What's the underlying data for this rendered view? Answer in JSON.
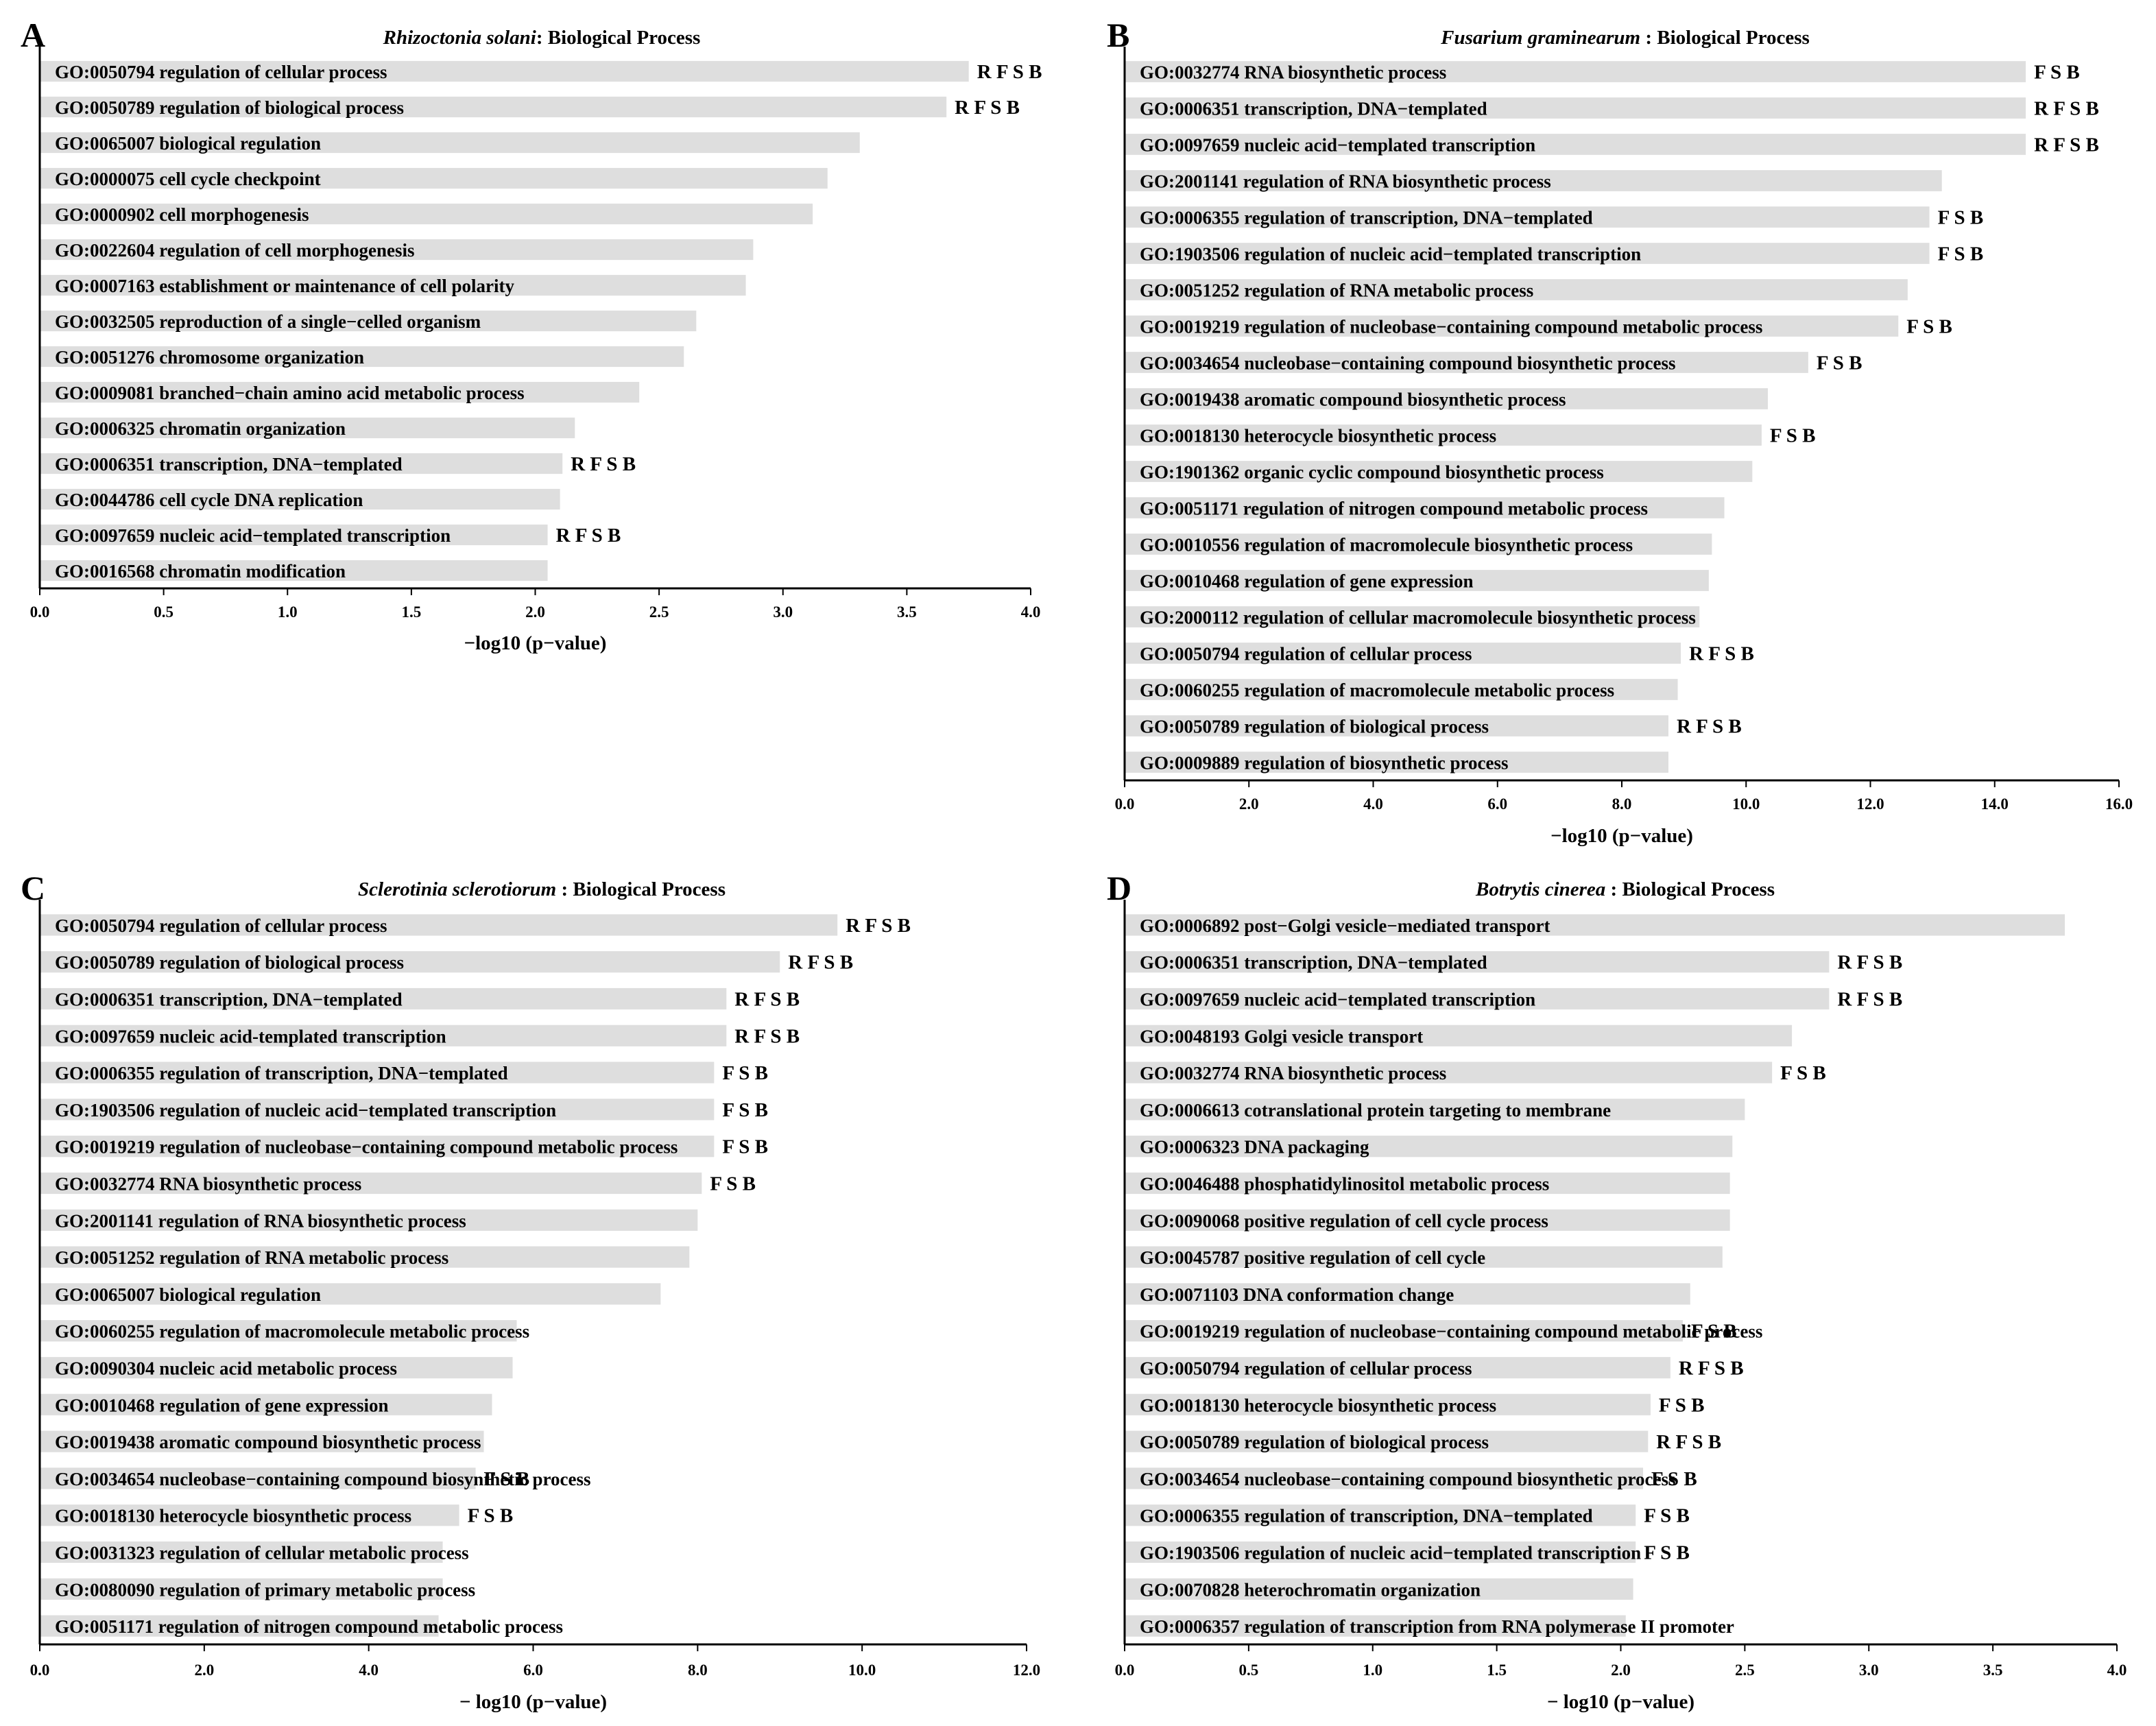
{
  "colors": {
    "bar": "#dedede",
    "axis": "#000000",
    "text": "#000000",
    "background": "#ffffff"
  },
  "chart_data": [
    {
      "panel": "A",
      "type": "bar",
      "orientation": "horizontal",
      "title_species": "Rhizoctonia solani",
      "title_suffix": ": Biological Process",
      "xlabel": "−log10 (p−value)",
      "xlim": [
        0,
        4
      ],
      "xticks": [
        "0.0",
        "0.5",
        "1.0",
        "1.5",
        "2.0",
        "2.5",
        "3.0",
        "3.5",
        "4.0"
      ],
      "categories": [
        "GO:0050794 regulation of cellular process",
        "GO:0050789 regulation of biological process",
        "GO:0065007 biological regulation",
        "GO:0000075 cell cycle checkpoint",
        "GO:0000902 cell morphogenesis",
        "GO:0022604 regulation of cell morphogenesis",
        "GO:0007163 establishment or maintenance of cell polarity",
        "GO:0032505 reproduction of a single−celled organism",
        "GO:0051276 chromosome organization",
        "GO:0009081 branched−chain amino acid metabolic process",
        "GO:0006325 chromatin organization",
        "GO:0006351 transcription, DNA−templated",
        "GO:0044786 cell cycle DNA replication",
        "GO:0097659 nucleic acid−templated transcription",
        "GO:0016568 chromatin modification"
      ],
      "values": [
        3.75,
        3.66,
        3.31,
        3.18,
        3.12,
        2.88,
        2.85,
        2.65,
        2.6,
        2.42,
        2.16,
        2.11,
        2.1,
        2.05,
        2.05
      ],
      "annotations": [
        "R F S B",
        "R F S B",
        "",
        "",
        "",
        "",
        "",
        "",
        "",
        "",
        "",
        "R F S B",
        "",
        "R F S B",
        ""
      ]
    },
    {
      "panel": "B",
      "type": "bar",
      "orientation": "horizontal",
      "title_species": "Fusarium graminearum",
      "title_suffix": " : Biological Process",
      "xlabel": "−log10 (p−value)",
      "xlim": [
        0,
        16
      ],
      "xticks": [
        "0.0",
        "2.0",
        "4.0",
        "6.0",
        "8.0",
        "10.0",
        "12.0",
        "14.0",
        "16.0"
      ],
      "categories": [
        "GO:0032774 RNA biosynthetic process",
        "GO:0006351 transcription, DNA−templated",
        "GO:0097659 nucleic acid−templated transcription",
        "GO:2001141 regulation of RNA biosynthetic process",
        "GO:0006355 regulation of transcription, DNA−templated",
        "GO:1903506 regulation of nucleic acid−templated transcription",
        "GO:0051252 regulation of RNA metabolic process",
        "GO:0019219 regulation of nucleobase−containing compound metabolic process",
        "GO:0034654 nucleobase−containing compound biosynthetic process",
        "GO:0019438 aromatic compound biosynthetic process",
        "GO:0018130 heterocycle biosynthetic process",
        "GO:1901362 organic cyclic compound biosynthetic process",
        "GO:0051171 regulation of nitrogen compound metabolic process",
        "GO:0010556 regulation of macromolecule biosynthetic process",
        "GO:0010468 regulation of gene expression",
        "GO:2000112 regulation of cellular macromolecule biosynthetic process",
        "GO:0050794 regulation of cellular process",
        "GO:0060255 regulation of macromolecule metabolic process",
        "GO:0050789 regulation of biological process",
        "GO:0009889 regulation of biosynthetic process"
      ],
      "values": [
        14.5,
        14.5,
        14.5,
        13.15,
        12.95,
        12.95,
        12.6,
        12.45,
        11.0,
        10.35,
        10.25,
        10.1,
        9.65,
        9.45,
        9.4,
        9.25,
        8.95,
        8.9,
        8.75,
        8.75
      ],
      "annotations": [
        "F S B",
        "R F S B",
        "R F S B",
        "",
        "F S B",
        "F S B",
        "",
        "F S B",
        "F S B",
        "",
        "F S B",
        "",
        "",
        "",
        "",
        "",
        "R F S B",
        "",
        "R F S B",
        ""
      ]
    },
    {
      "panel": "C",
      "type": "bar",
      "orientation": "horizontal",
      "title_species": "Sclerotinia sclerotiorum",
      "title_suffix": " : Biological Process",
      "xlabel": "− log10 (p−value)",
      "xlim": [
        0,
        12
      ],
      "xticks": [
        "0.0",
        "2.0",
        "4.0",
        "6.0",
        "8.0",
        "10.0",
        "12.0"
      ],
      "categories": [
        "GO:0050794 regulation of cellular process",
        "GO:0050789 regulation of biological process",
        "GO:0006351 transcription, DNA−templated",
        "GO:0097659 nucleic acid-templated transcription",
        "GO:0006355 regulation of transcription, DNA−templated",
        "GO:1903506 regulation of nucleic acid−templated transcription",
        "GO:0019219 regulation of nucleobase−containing compound metabolic process",
        "GO:0032774 RNA biosynthetic process",
        "GO:2001141 regulation of RNA biosynthetic process",
        "GO:0051252 regulation of RNA metabolic process",
        "GO:0065007 biological regulation",
        "GO:0060255 regulation of macromolecule metabolic process",
        "GO:0090304 nucleic acid metabolic process",
        "GO:0010468 regulation of gene expression",
        "GO:0019438 aromatic compound biosynthetic process",
        "GO:0034654 nucleobase−containing compound biosynthetic process",
        "GO:0018130 heterocycle biosynthetic process",
        "GO:0031323 regulation of cellular metabolic process",
        "GO:0080090 regulation of primary metabolic process",
        "GO:0051171 regulation of nitrogen compound metabolic process"
      ],
      "values": [
        9.7,
        9.0,
        8.35,
        8.35,
        8.2,
        8.2,
        8.2,
        8.05,
        8.0,
        7.9,
        7.55,
        5.8,
        5.75,
        5.5,
        5.4,
        5.3,
        5.1,
        4.9,
        4.9,
        4.85
      ],
      "annotations": [
        "R F S B",
        "R F S B",
        "R F S B",
        "R F S B",
        "F S B",
        "F S B",
        "F S B",
        "F S B",
        "",
        "",
        "",
        "",
        "",
        "",
        "",
        "F S B",
        "F S B",
        "",
        "",
        ""
      ]
    },
    {
      "panel": "D",
      "type": "bar",
      "orientation": "horizontal",
      "title_species": "Botrytis cinerea",
      "title_suffix": " : Biological Process",
      "xlabel": "− log10 (p−value)",
      "xlim": [
        0,
        4
      ],
      "xticks": [
        "0.0",
        "0.5",
        "1.0",
        "1.5",
        "2.0",
        "2.5",
        "3.0",
        "3.5",
        "4.0"
      ],
      "categories": [
        "GO:0006892 post−Golgi vesicle−mediated transport",
        "GO:0006351 transcription, DNA−templated",
        "GO:0097659 nucleic acid−templated transcription",
        "GO:0048193 Golgi vesicle transport",
        "GO:0032774 RNA biosynthetic process",
        "GO:0006613 cotranslational protein targeting to membrane",
        "GO:0006323 DNA packaging",
        "GO:0046488 phosphatidylinositol metabolic process",
        "GO:0090068 positive regulation of cell cycle process",
        "GO:0045787 positive regulation of cell cycle",
        "GO:0071103 DNA conformation change",
        "GO:0019219 regulation of nucleobase−containing compound metabolic process",
        "GO:0050794 regulation of cellular process",
        "GO:0018130 heterocycle biosynthetic process",
        "GO:0050789 regulation of biological process",
        "GO:0034654 nucleobase−containing compound biosynthetic process",
        "GO:0006355 regulation of transcription, DNA−templated",
        "GO:1903506 regulation of nucleic acid−templated transcription",
        "GO:0070828 heterochromatin organization",
        "GO:0006357 regulation of transcription from RNA polymerase II promoter"
      ],
      "values": [
        3.79,
        2.84,
        2.84,
        2.69,
        2.61,
        2.5,
        2.45,
        2.44,
        2.44,
        2.41,
        2.28,
        2.25,
        2.2,
        2.12,
        2.11,
        2.09,
        2.06,
        2.06,
        2.05,
        2.02
      ],
      "annotations": [
        "",
        "R F S B",
        "R F S B",
        "",
        "F S B",
        "",
        "",
        "",
        "",
        "",
        "",
        "F S B",
        "R F S B",
        "F S B",
        "R F S B",
        "F S B",
        "F S B",
        "F S B",
        "",
        ""
      ]
    }
  ]
}
